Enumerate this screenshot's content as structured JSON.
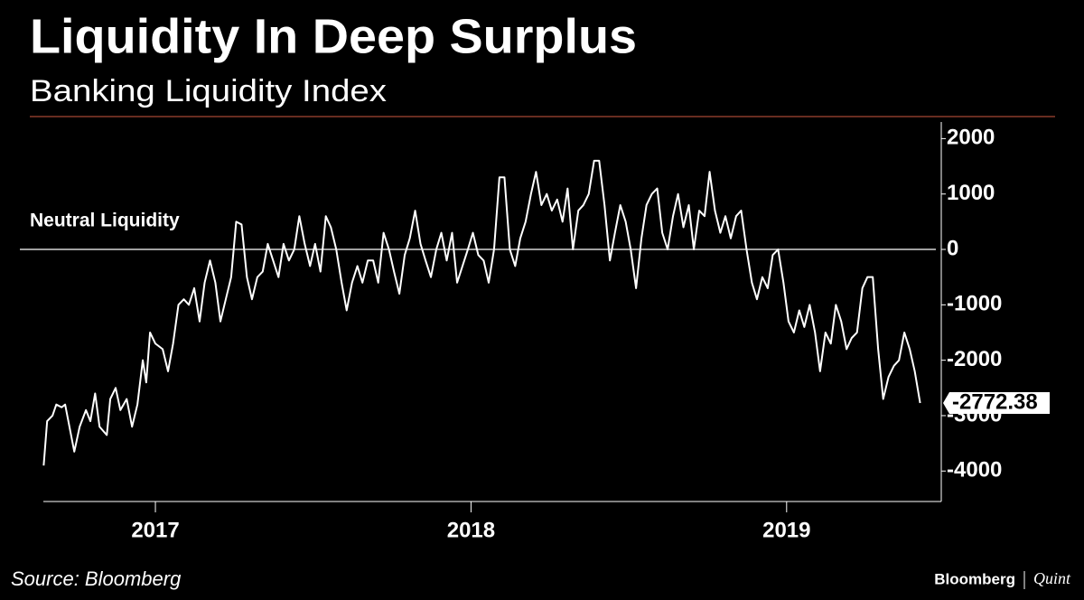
{
  "chart_data": {
    "type": "line",
    "title": "Liquidity In Deep Surplus",
    "subtitle": "Banking Liquidity Index",
    "source": "Source: Bloomberg",
    "credit": [
      "Bloomberg",
      "Quint"
    ],
    "color": "#ffffff",
    "annotations": [
      {
        "text": "Neutral Liquidity",
        "y": 0
      }
    ],
    "xlim": [
      2016.645,
      2019.49
    ],
    "ylim": [
      -4550,
      2300
    ],
    "xticks": [
      2017,
      2018,
      2019
    ],
    "yticks": [
      2000,
      1000,
      0,
      -1000,
      -2000,
      -3000,
      -4000
    ],
    "x": [
      2016.646,
      2016.657,
      2016.674,
      2016.686,
      2016.703,
      2016.714,
      2016.731,
      2016.743,
      2016.76,
      2016.78,
      2016.794,
      2016.809,
      2016.823,
      2016.846,
      2016.857,
      2016.874,
      2016.889,
      2016.909,
      2016.926,
      2016.943,
      2016.96,
      2016.971,
      2016.983,
      2017.0,
      2017.023,
      2017.04,
      2017.056,
      2017.073,
      2017.09,
      2017.106,
      2017.123,
      2017.14,
      2017.156,
      2017.173,
      2017.19,
      2017.206,
      2017.223,
      2017.24,
      2017.256,
      2017.273,
      2017.29,
      2017.306,
      2017.323,
      2017.34,
      2017.356,
      2017.373,
      2017.39,
      2017.406,
      2017.423,
      2017.44,
      2017.456,
      2017.473,
      2017.49,
      2017.506,
      2017.523,
      2017.54,
      2017.556,
      2017.573,
      2017.59,
      2017.606,
      2017.623,
      2017.64,
      2017.656,
      2017.673,
      2017.69,
      2017.706,
      2017.723,
      2017.74,
      2017.756,
      2017.773,
      2017.79,
      2017.806,
      2017.823,
      2017.84,
      2017.856,
      2017.873,
      2017.89,
      2017.906,
      2017.923,
      2017.94,
      2017.956,
      2017.973,
      2017.99,
      2018.006,
      2018.023,
      2018.04,
      2018.056,
      2018.073,
      2018.09,
      2018.106,
      2018.123,
      2018.14,
      2018.156,
      2018.173,
      2018.19,
      2018.206,
      2018.223,
      2018.24,
      2018.256,
      2018.273,
      2018.29,
      2018.306,
      2018.323,
      2018.34,
      2018.356,
      2018.373,
      2018.39,
      2018.406,
      2018.423,
      2018.44,
      2018.456,
      2018.473,
      2018.49,
      2018.506,
      2018.523,
      2018.54,
      2018.556,
      2018.573,
      2018.59,
      2018.606,
      2018.623,
      2018.64,
      2018.656,
      2018.673,
      2018.69,
      2018.706,
      2018.723,
      2018.74,
      2018.756,
      2018.773,
      2018.79,
      2018.806,
      2018.823,
      2018.84,
      2018.856,
      2018.873,
      2018.89,
      2018.906,
      2018.923,
      2018.94,
      2018.956,
      2018.973,
      2018.99,
      2019.006,
      2019.023,
      2019.04,
      2019.056,
      2019.073,
      2019.09,
      2019.106,
      2019.123,
      2019.14,
      2019.156,
      2019.173,
      2019.19,
      2019.206,
      2019.223,
      2019.24,
      2019.256,
      2019.273,
      2019.29,
      2019.306,
      2019.323,
      2019.34,
      2019.356,
      2019.373,
      2019.39,
      2019.406,
      2019.423
    ],
    "values": [
      -3900,
      -3100,
      -3000,
      -2800,
      -2850,
      -2800,
      -3300,
      -3650,
      -3200,
      -2900,
      -3100,
      -2600,
      -3200,
      -3350,
      -2700,
      -2500,
      -2900,
      -2700,
      -3200,
      -2800,
      -2000,
      -2400,
      -1500,
      -1700,
      -1800,
      -2200,
      -1700,
      -1000,
      -900,
      -1000,
      -700,
      -1300,
      -600,
      -200,
      -600,
      -1300,
      -900,
      -500,
      500,
      450,
      -500,
      -900,
      -500,
      -400,
      100,
      -200,
      -500,
      100,
      -200,
      0,
      600,
      100,
      -300,
      100,
      -400,
      600,
      400,
      0,
      -600,
      -1100,
      -600,
      -300,
      -600,
      -200,
      -200,
      -600,
      300,
      0,
      -400,
      -800,
      -100,
      200,
      700,
      100,
      -200,
      -500,
      0,
      300,
      -200,
      300,
      -600,
      -300,
      0,
      300,
      -100,
      -200,
      -600,
      0,
      1300,
      1300,
      0,
      -300,
      200,
      500,
      1000,
      1400,
      800,
      1000,
      700,
      900,
      500,
      1100,
      0,
      700,
      800,
      1000,
      1600,
      1600,
      800,
      -200,
      300,
      800,
      500,
      0,
      -700,
      200,
      800,
      1000,
      1100,
      300,
      0,
      600,
      1000,
      400,
      800,
      0,
      700,
      600,
      1400,
      700,
      300,
      600,
      200,
      600,
      700,
      0,
      -600,
      -900,
      -500,
      -700,
      -100,
      0,
      -600,
      -1300,
      -1500,
      -1100,
      -1400,
      -1000,
      -1500,
      -2200,
      -1500,
      -1700,
      -1000,
      -1300,
      -1800,
      -1600,
      -1500,
      -700,
      -500,
      -500,
      -1800,
      -2700,
      -2300,
      -2100,
      -2000,
      -1500,
      -1800,
      -2200,
      -2772.38
    ]
  }
}
